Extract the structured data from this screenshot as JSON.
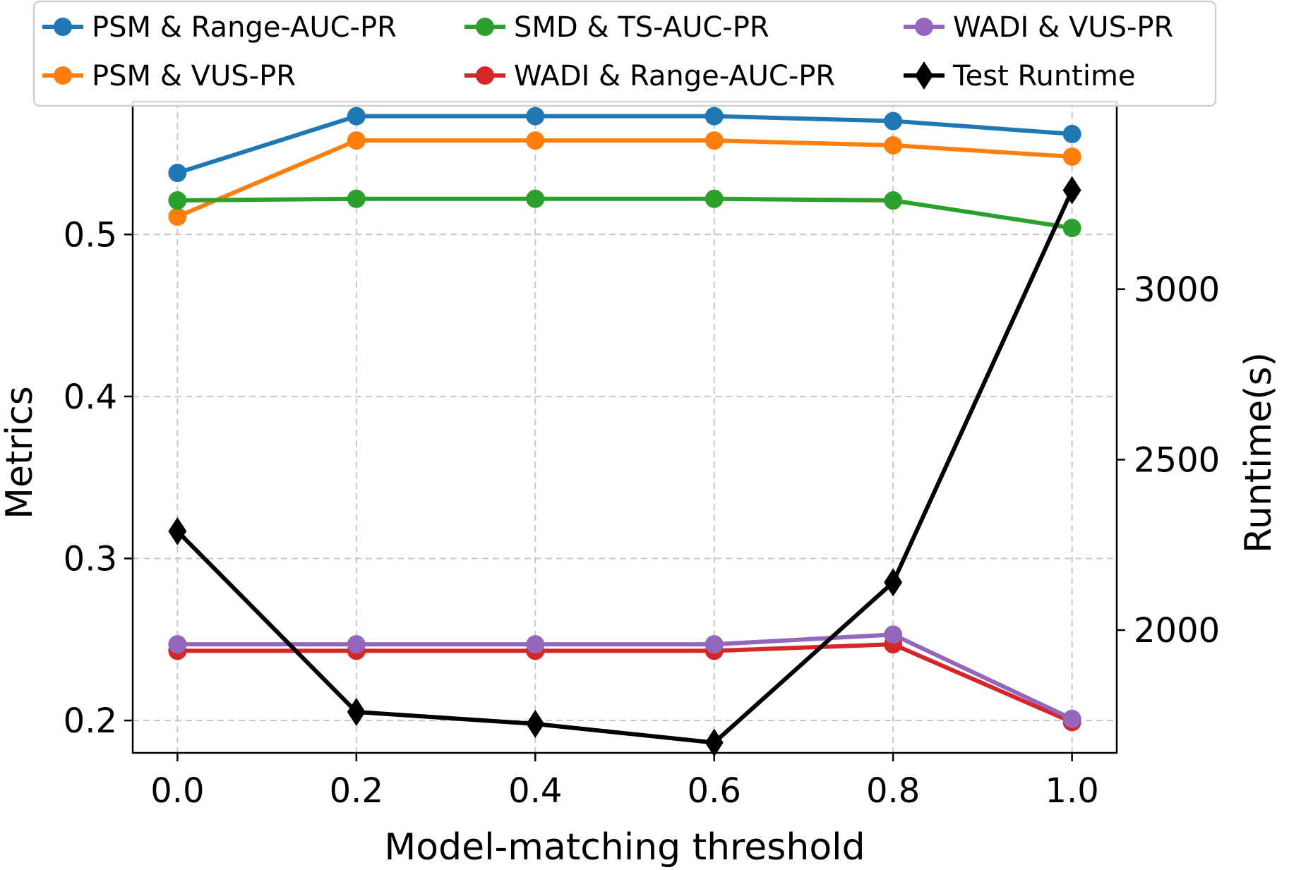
{
  "chart_data": {
    "type": "line",
    "xlabel": "Model-matching threshold",
    "ylabel": "Metrics",
    "y2label": "Runtime(s)",
    "x": [
      0.0,
      0.2,
      0.4,
      0.6,
      0.8,
      1.0
    ],
    "x_tick_labels": [
      "0.0",
      "0.2",
      "0.4",
      "0.6",
      "0.8",
      "1.0"
    ],
    "xlim": [
      -0.05,
      1.05
    ],
    "ylim": [
      0.18,
      0.582
    ],
    "y_ticks": [
      0.2,
      0.3,
      0.4,
      0.5
    ],
    "y_tick_labels": [
      "0.2",
      "0.3",
      "0.4",
      "0.5"
    ],
    "y2lim": [
      1640,
      3550
    ],
    "y2_ticks": [
      2000,
      2500,
      3000
    ],
    "y2_tick_labels": [
      "2000",
      "2500",
      "3000"
    ],
    "grid": true,
    "legend_position": "top (outside plot)",
    "series": [
      {
        "name": "PSM & Range-AUC-PR",
        "axis": "left",
        "color": "#1f77b4",
        "marker": "circle",
        "values": [
          0.538,
          0.573,
          0.573,
          0.573,
          0.57,
          0.562
        ]
      },
      {
        "name": "PSM & VUS-PR",
        "axis": "left",
        "color": "#ff7f0e",
        "marker": "circle",
        "values": [
          0.511,
          0.558,
          0.558,
          0.558,
          0.555,
          0.548
        ]
      },
      {
        "name": "SMD & TS-AUC-PR",
        "axis": "left",
        "color": "#2ca02c",
        "marker": "circle",
        "values": [
          0.521,
          0.522,
          0.522,
          0.522,
          0.521,
          0.504
        ]
      },
      {
        "name": "WADI & Range-AUC-PR",
        "axis": "left",
        "color": "#d62728",
        "marker": "circle",
        "values": [
          0.243,
          0.243,
          0.243,
          0.243,
          0.247,
          0.199
        ]
      },
      {
        "name": "WADI & VUS-PR",
        "axis": "left",
        "color": "#9467bd",
        "marker": "circle",
        "values": [
          0.247,
          0.247,
          0.247,
          0.247,
          0.253,
          0.201
        ]
      },
      {
        "name": "Test Runtime",
        "axis": "right",
        "color": "#000000",
        "marker": "diamond",
        "values": [
          2290,
          1760,
          1725,
          1670,
          2140,
          3290
        ]
      }
    ]
  }
}
